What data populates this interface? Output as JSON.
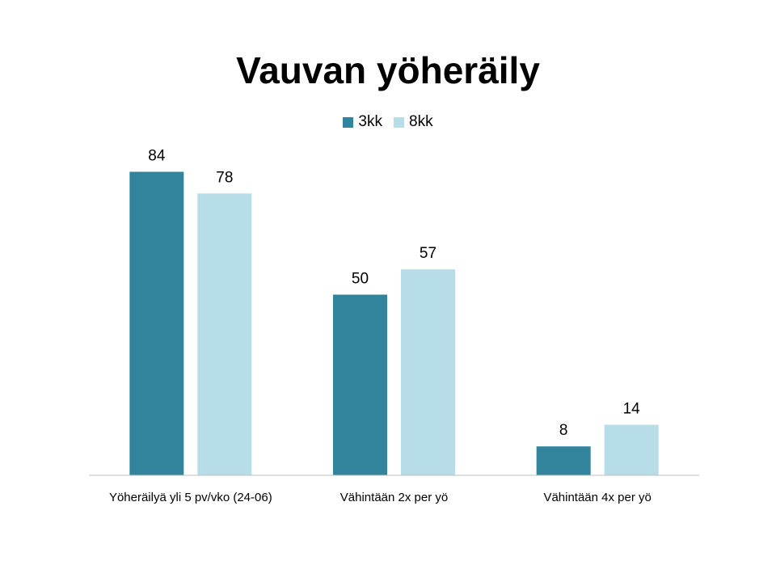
{
  "chart_data": {
    "type": "bar",
    "title": "Vauvan yöheräily",
    "categories": [
      "Yöheräilyä yli 5 pv/vko (24-06)",
      "Vähintään 2x per yö",
      "Vähintään 4x per yö"
    ],
    "series": [
      {
        "name": "3kk",
        "color": "#31849b",
        "values": [
          84,
          50,
          8
        ]
      },
      {
        "name": "8kk",
        "color": "#b7dde8",
        "values": [
          78,
          57,
          14
        ]
      }
    ],
    "ylim": [
      0,
      90
    ],
    "grid": false,
    "legend_position": "top"
  }
}
